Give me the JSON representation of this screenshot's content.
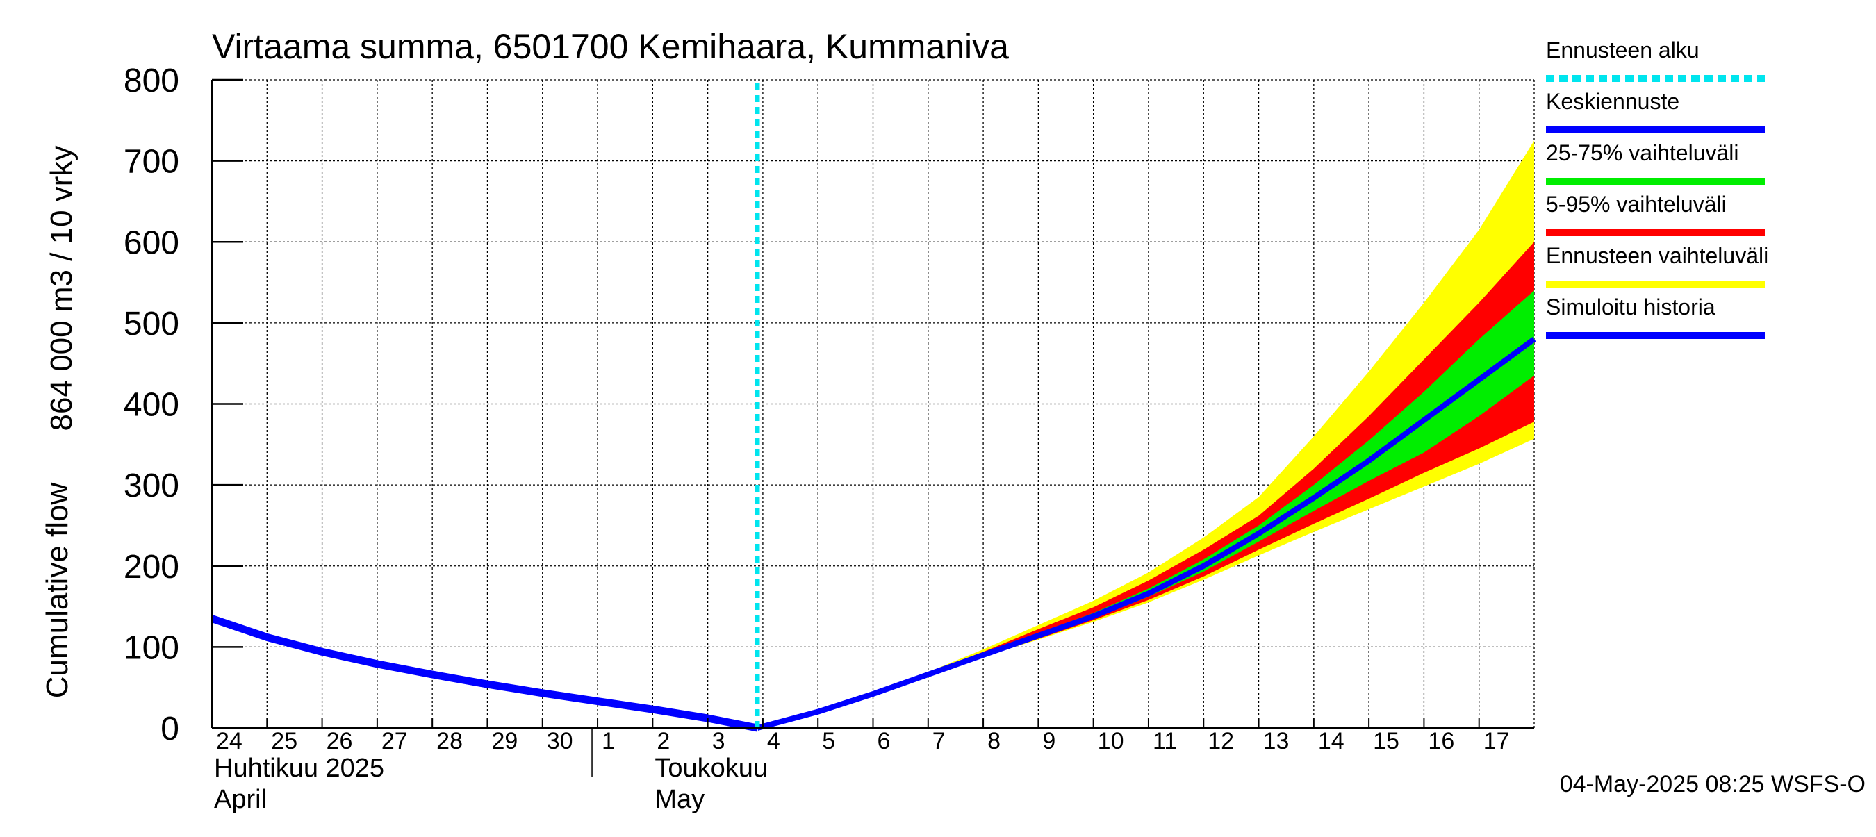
{
  "chart_data": {
    "type": "area",
    "title": "Virtaama summa, 6501700 Kemihaara, Kummaniva",
    "ylabel_fi": "864 000 m3 / 10 vrky",
    "ylabel_en": "Cumulative flow",
    "ylim": [
      0,
      800
    ],
    "yticks": [
      0,
      100,
      200,
      300,
      400,
      500,
      600,
      700,
      800
    ],
    "grid": true,
    "legend_position": "right",
    "x_domain_days": [
      0,
      24
    ],
    "x_day_labels": [
      {
        "label": "24",
        "day": 0
      },
      {
        "label": "25",
        "day": 1
      },
      {
        "label": "26",
        "day": 2
      },
      {
        "label": "27",
        "day": 3
      },
      {
        "label": "28",
        "day": 4
      },
      {
        "label": "29",
        "day": 5
      },
      {
        "label": "30",
        "day": 6
      },
      {
        "label": "1",
        "day": 7
      },
      {
        "label": "2",
        "day": 8
      },
      {
        "label": "3",
        "day": 9
      },
      {
        "label": "4",
        "day": 10
      },
      {
        "label": "5",
        "day": 11
      },
      {
        "label": "6",
        "day": 12
      },
      {
        "label": "7",
        "day": 13
      },
      {
        "label": "8",
        "day": 14
      },
      {
        "label": "9",
        "day": 15
      },
      {
        "label": "10",
        "day": 16
      },
      {
        "label": "11",
        "day": 17
      },
      {
        "label": "12",
        "day": 18
      },
      {
        "label": "13",
        "day": 19
      },
      {
        "label": "14",
        "day": 20
      },
      {
        "label": "15",
        "day": 21
      },
      {
        "label": "16",
        "day": 22
      },
      {
        "label": "17",
        "day": 23
      }
    ],
    "month_labels": [
      {
        "line1": "Huhtikuu  2025",
        "line2": "April",
        "day": 0
      },
      {
        "line1": "Toukokuu",
        "line2": "May",
        "day": 8
      }
    ],
    "month_separator_days": [
      7
    ],
    "forecast_start_day": 9.9,
    "history": {
      "name": "Simuloitu historia",
      "x": [
        0,
        1,
        2,
        3,
        4,
        5,
        6,
        7,
        8,
        9,
        9.9
      ],
      "y": [
        135,
        112,
        94,
        79,
        66,
        54,
        43,
        33,
        23,
        12,
        0
      ]
    },
    "forecast_x": [
      9.9,
      11,
      12,
      13,
      14,
      15,
      16,
      17,
      18,
      19,
      20,
      21,
      22,
      23,
      24
    ],
    "median": {
      "name": "Keskiennuste",
      "y": [
        0,
        20,
        42,
        66,
        90,
        114,
        138,
        166,
        200,
        240,
        284,
        330,
        380,
        430,
        480
      ]
    },
    "band_25_75": {
      "name": "25-75% vaihteluväli",
      "lower": [
        0,
        20,
        42,
        66,
        89,
        112,
        135,
        162,
        193,
        230,
        268,
        305,
        340,
        385,
        435
      ],
      "upper": [
        0,
        20,
        42,
        67,
        92,
        117,
        142,
        172,
        208,
        250,
        300,
        355,
        415,
        480,
        540
      ]
    },
    "band_5_95": {
      "name": "5-95% vaihteluväli",
      "lower": [
        0,
        20,
        42,
        66,
        88,
        110,
        133,
        158,
        187,
        220,
        252,
        283,
        315,
        345,
        378
      ],
      "upper": [
        0,
        20,
        42,
        68,
        94,
        122,
        149,
        182,
        220,
        262,
        320,
        385,
        455,
        525,
        600
      ]
    },
    "band_full": {
      "name": "Ennusteen vaihteluväli",
      "lower": [
        0,
        20,
        42,
        66,
        88,
        109,
        131,
        155,
        183,
        213,
        242,
        270,
        298,
        326,
        357
      ],
      "upper": [
        0,
        21,
        43,
        69,
        97,
        127,
        157,
        192,
        235,
        285,
        360,
        440,
        525,
        615,
        725
      ]
    },
    "legend": [
      {
        "label": "Ennusteen alku",
        "color": "#00e5ee",
        "style": "dotted"
      },
      {
        "label": "Keskiennuste",
        "color": "#0000ff",
        "style": "solid"
      },
      {
        "label": "25-75% vaihteluväli",
        "color": "#00ee00",
        "style": "solid"
      },
      {
        "label": "5-95% vaihteluväli",
        "color": "#ff0000",
        "style": "solid"
      },
      {
        "label": "Ennusteen vaihteluväli",
        "color": "#ffff00",
        "style": "solid"
      },
      {
        "label": "Simuloitu historia",
        "color": "#0000ff",
        "style": "solid"
      }
    ],
    "colors": {
      "history": "#0000ff",
      "median": "#0000ff",
      "band_25_75": "#00ee00",
      "band_5_95": "#ff0000",
      "band_full": "#ffff00",
      "forecast_start": "#00e5ee",
      "grid": "#000000"
    },
    "footer": "04-May-2025 08:25 WSFS-O"
  }
}
